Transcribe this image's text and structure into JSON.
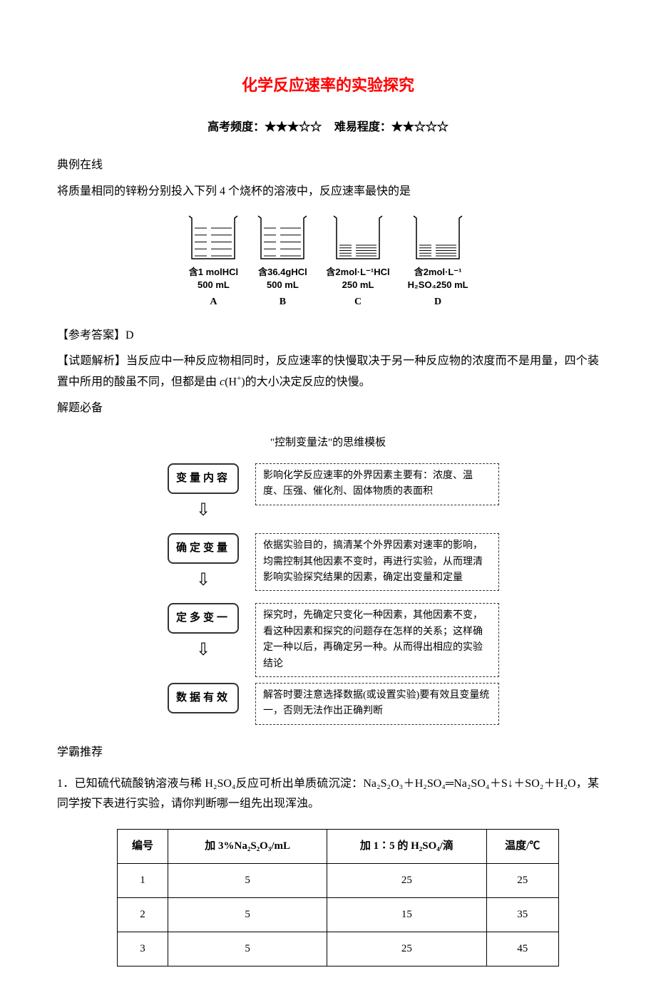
{
  "title": "化学反应速率的实验探究",
  "subtitle_freq": "高考频度：★★★☆☆",
  "subtitle_diff": "难易程度：★★☆☆☆",
  "section_example": "典例在线",
  "example_text": "将质量相同的锌粉分别投入下列 4 个烧杯的溶液中，反应速率最快的是",
  "beakers": {
    "fill_levels": [
      0.75,
      0.75,
      0.35,
      0.35
    ],
    "labels": [
      "含1 molHCl\n500 mL",
      "含36.4gHCl\n500 mL",
      "含2mol·L⁻¹HCl\n250 mL",
      "含2mol·L⁻¹\nH₂SO₄250 mL"
    ],
    "letters": [
      "A",
      "B",
      "C",
      "D"
    ],
    "beaker_stroke": "#000000",
    "liquid_stroke": "#000000",
    "beaker_w": 60,
    "beaker_h": 60
  },
  "answer_label": "【参考答案】D",
  "analysis_label": "【试题解析】",
  "analysis_text_1": "当反应中一种反应物相同时，反应速率的快慢取决于另一种反应物的浓度而不是用量，四个装置中所用的酸虽不同，但都是由 ",
  "analysis_c": "c",
  "analysis_h": "(H",
  "analysis_plus": "+",
  "analysis_text_2": ")的大小决定反应的快慢。",
  "section_skill": "解题必备",
  "flowchart_title": "\"控制变量法\"的思维模板",
  "flowchart": {
    "box_border": "#333333",
    "desc_border": "#333333",
    "steps": [
      {
        "box": "变量内容",
        "desc": "影响化学反应速率的外界因素主要有：浓度、温度、压强、催化剂、固体物质的表面积"
      },
      {
        "box": "确定变量",
        "desc": "依据实验目的，搞清某个外界因素对速率的影响，均需控制其他因素不变时，再进行实验，从而理清影响实验探究结果的因素，确定出变量和定量"
      },
      {
        "box": "定多变一",
        "desc": "探究时，先确定只变化一种因素，其他因素不变，看这种因素和探究的问题存在怎样的关系；这样确定一种以后，再确定另一种。从而得出相应的实验结论"
      },
      {
        "box": "数据有效",
        "desc": "解答时要注意选择数据(或设置实验)要有效且变量统一，否则无法作出正确判断"
      }
    ]
  },
  "section_rec": "学霸推荐",
  "q1_num": "1．",
  "q1_text_1": "已知硫代硫酸钠溶液与稀 H₂SO₄反应可析出单质硫沉淀：Na₂S₂O₃＋H₂SO₄═Na₂SO₄＋S↓＋SO₂＋H₂O，某同学按下表进行实验，请你判断哪一组先出现浑浊。",
  "table": {
    "columns": [
      "编号",
      "加 3%Na₂S₂O₃/mL",
      "加 1∶5 的 H₂SO₄/滴",
      "温度/℃"
    ],
    "col_widths": [
      "70px",
      "220px",
      "220px",
      "100px"
    ],
    "rows": [
      [
        "1",
        "5",
        "25",
        "25"
      ],
      [
        "2",
        "5",
        "15",
        "35"
      ],
      [
        "3",
        "5",
        "25",
        "45"
      ]
    ]
  }
}
